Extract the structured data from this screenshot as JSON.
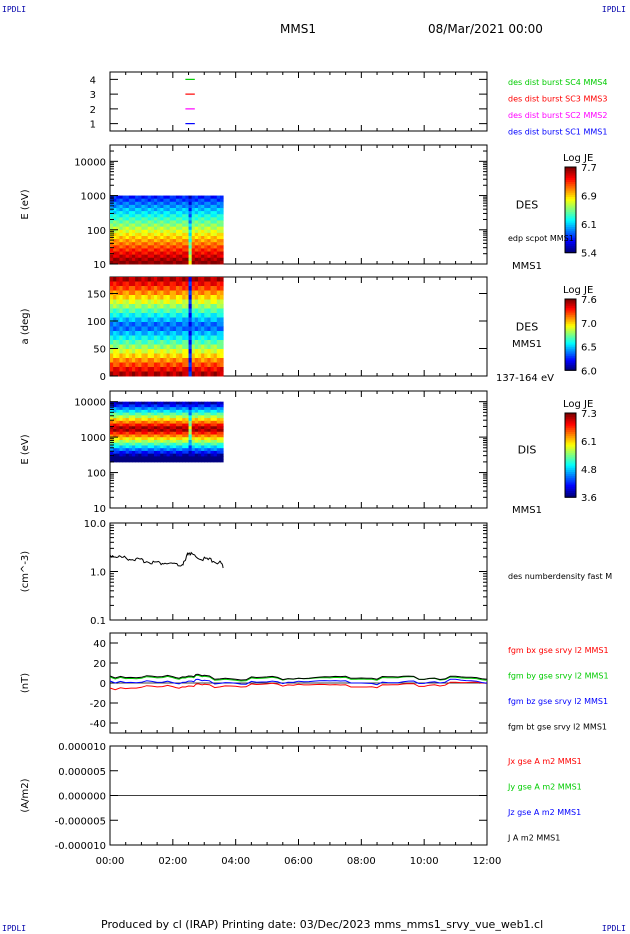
{
  "header": {
    "corner_left": "IPDLI",
    "corner_right": "IPDLI",
    "spacecraft": "MMS1",
    "date": "08/Mar/2021 00:00"
  },
  "footer": {
    "text": "Produced by cl (IRAP)   Printing date: 03/Dec/2023   mms_mms1_srvy_vue_web1.cl",
    "corner_left": "IPDLI",
    "corner_right": "IPDLI"
  },
  "colors": {
    "mms1": "#0000ff",
    "mms2": "#ff00ff",
    "mms3": "#ff0000",
    "mms4": "#00cc00",
    "bx": "#ff0000",
    "by": "#00cc00",
    "bz": "#0000ff",
    "bt": "#000000"
  },
  "chart_data": [
    {
      "type": "line",
      "panel": "spacecraft-indicator",
      "yticks": [
        "1",
        "2",
        "3",
        "4"
      ],
      "ylim": [
        0.5,
        4.5
      ],
      "series": [
        {
          "name": "des dist burst SC1 MMS1",
          "y": 1,
          "color": "#0000ff"
        },
        {
          "name": "des dist burst SC2 MMS2",
          "y": 2,
          "color": "#ff00ff"
        },
        {
          "name": "des dist burst SC3 MMS3",
          "y": 3,
          "color": "#ff0000"
        },
        {
          "name": "des dist burst SC4 MMS4",
          "y": 4,
          "color": "#00cc00"
        }
      ],
      "x_hours": [
        2.4,
        2.7
      ]
    },
    {
      "type": "heatmap",
      "panel": "des-energy-spectrogram",
      "ylabel": "E (eV)",
      "yscale": "log",
      "ylim": [
        10,
        30000
      ],
      "yticks": [
        "10",
        "100",
        "1000",
        "10000"
      ],
      "x_hours_range": [
        0,
        3.6
      ],
      "y_range": [
        10,
        1000
      ],
      "label": "DES",
      "side_labels": [
        "edp scpot MMS1",
        "MMS1"
      ],
      "colorbar": {
        "title": "Log JE",
        "ticks": [
          "7.7",
          "6.9",
          "6.1",
          "5.4"
        ],
        "min": 5.4,
        "max": 7.7
      }
    },
    {
      "type": "heatmap",
      "panel": "des-pitch-angle",
      "ylabel": "a (deg)",
      "ylim": [
        0,
        180
      ],
      "yticks": [
        "0",
        "50",
        "100",
        "150"
      ],
      "x_hours_range": [
        0,
        3.6
      ],
      "label": "DES",
      "side_labels": [
        "MMS1",
        "137-164 eV"
      ],
      "colorbar": {
        "title": "Log JE",
        "ticks": [
          "7.6",
          "7.0",
          "6.5",
          "6.0"
        ],
        "min": 6.0,
        "max": 7.6
      }
    },
    {
      "type": "heatmap",
      "panel": "dis-energy-spectrogram",
      "ylabel": "E (eV)",
      "yscale": "log",
      "ylim": [
        10,
        20000
      ],
      "yticks": [
        "10",
        "100",
        "1000",
        "10000"
      ],
      "x_hours_range": [
        0,
        3.6
      ],
      "y_range": [
        200,
        10000
      ],
      "label": "DIS",
      "side_labels": [
        "MMS1"
      ],
      "colorbar": {
        "title": "Log JE",
        "ticks": [
          "7.3",
          "6.1",
          "4.8",
          "3.6"
        ],
        "min": 3.6,
        "max": 7.3
      }
    },
    {
      "type": "line",
      "panel": "density",
      "ylabel": "(cm^-3)",
      "yscale": "log",
      "ylim": [
        0.1,
        10
      ],
      "yticks": [
        "0.1",
        "1.0",
        "10.0"
      ],
      "series": [
        {
          "name": "des numberdensity fast M",
          "color": "#000000",
          "x": [
            0.0,
            0.25,
            0.5,
            0.75,
            1.0,
            1.25,
            1.5,
            1.75,
            2.0,
            2.25,
            2.4,
            2.5,
            2.6,
            2.75,
            3.0,
            3.25,
            3.5,
            3.6
          ],
          "y": [
            2.2,
            2.0,
            1.9,
            1.8,
            1.7,
            1.6,
            1.5,
            1.5,
            1.4,
            1.3,
            1.6,
            2.5,
            2.2,
            2.0,
            1.8,
            1.7,
            1.5,
            1.3
          ]
        }
      ]
    },
    {
      "type": "line",
      "panel": "magnetic-field",
      "ylabel": "(nT)",
      "ylim": [
        -50,
        50
      ],
      "yticks": [
        "-40",
        "-20",
        "0",
        "20",
        "40"
      ],
      "series": [
        {
          "name": "fgm bx gse srvy l2 MMS1",
          "color": "#ff0000",
          "x": [
            0,
            1,
            2,
            2.6,
            3,
            4,
            5,
            6,
            7,
            8,
            9,
            10,
            11,
            12
          ],
          "y": [
            -5,
            -4,
            -4,
            -2,
            -3,
            -2,
            -2,
            -1,
            -3,
            -4,
            -3,
            -2,
            -1,
            0
          ]
        },
        {
          "name": "fgm by gse srvy l2 MMS1",
          "color": "#00cc00",
          "x": [
            0,
            1,
            2,
            2.6,
            3,
            4,
            5,
            6,
            7,
            8,
            9,
            10,
            11,
            12
          ],
          "y": [
            6,
            5,
            5,
            7,
            5,
            4,
            4,
            5,
            4,
            4,
            4,
            5,
            4,
            3
          ]
        },
        {
          "name": "fgm bz gse srvy l2 MMS1",
          "color": "#0000ff",
          "x": [
            0,
            1,
            2,
            2.6,
            3,
            4,
            5,
            6,
            7,
            8,
            9,
            10,
            11,
            12
          ],
          "y": [
            2,
            1,
            0,
            3,
            1,
            1,
            0,
            2,
            1,
            0,
            -1,
            1,
            2,
            0
          ]
        },
        {
          "name": "fgm bt gse srvy l2 MMS1",
          "color": "#000000",
          "x": [
            0,
            1,
            2,
            2.6,
            3,
            4,
            5,
            6,
            7,
            8,
            9,
            10,
            11,
            12
          ],
          "y": [
            7,
            6,
            6,
            8,
            6,
            5,
            5,
            5,
            5,
            5,
            5,
            5,
            5,
            4
          ]
        }
      ]
    },
    {
      "type": "line",
      "panel": "current-density",
      "ylabel": "(A/m2)",
      "ylim": [
        -1e-05,
        1e-05
      ],
      "yticks": [
        "-0.000010",
        "-0.000005",
        "0.000000",
        "0.000005",
        "0.000010"
      ],
      "series": [
        {
          "name": "Jx gse A m2 MMS1",
          "color": "#ff0000",
          "x": [
            0,
            12
          ],
          "y": [
            0,
            0
          ]
        },
        {
          "name": "Jy gse A m2 MMS1",
          "color": "#00cc00",
          "x": [
            0,
            12
          ],
          "y": [
            0,
            0
          ]
        },
        {
          "name": "Jz gse A m2 MMS1",
          "color": "#0000ff",
          "x": [
            0,
            12
          ],
          "y": [
            0,
            0
          ]
        },
        {
          "name": "J A m2 MMS1",
          "color": "#000000",
          "x": [
            0,
            12
          ],
          "y": [
            0,
            0
          ]
        }
      ]
    }
  ],
  "xaxis": {
    "ticks": [
      "00:00",
      "02:00",
      "04:00",
      "06:00",
      "08:00",
      "10:00",
      "12:00"
    ],
    "range_hours": [
      0,
      12
    ]
  }
}
